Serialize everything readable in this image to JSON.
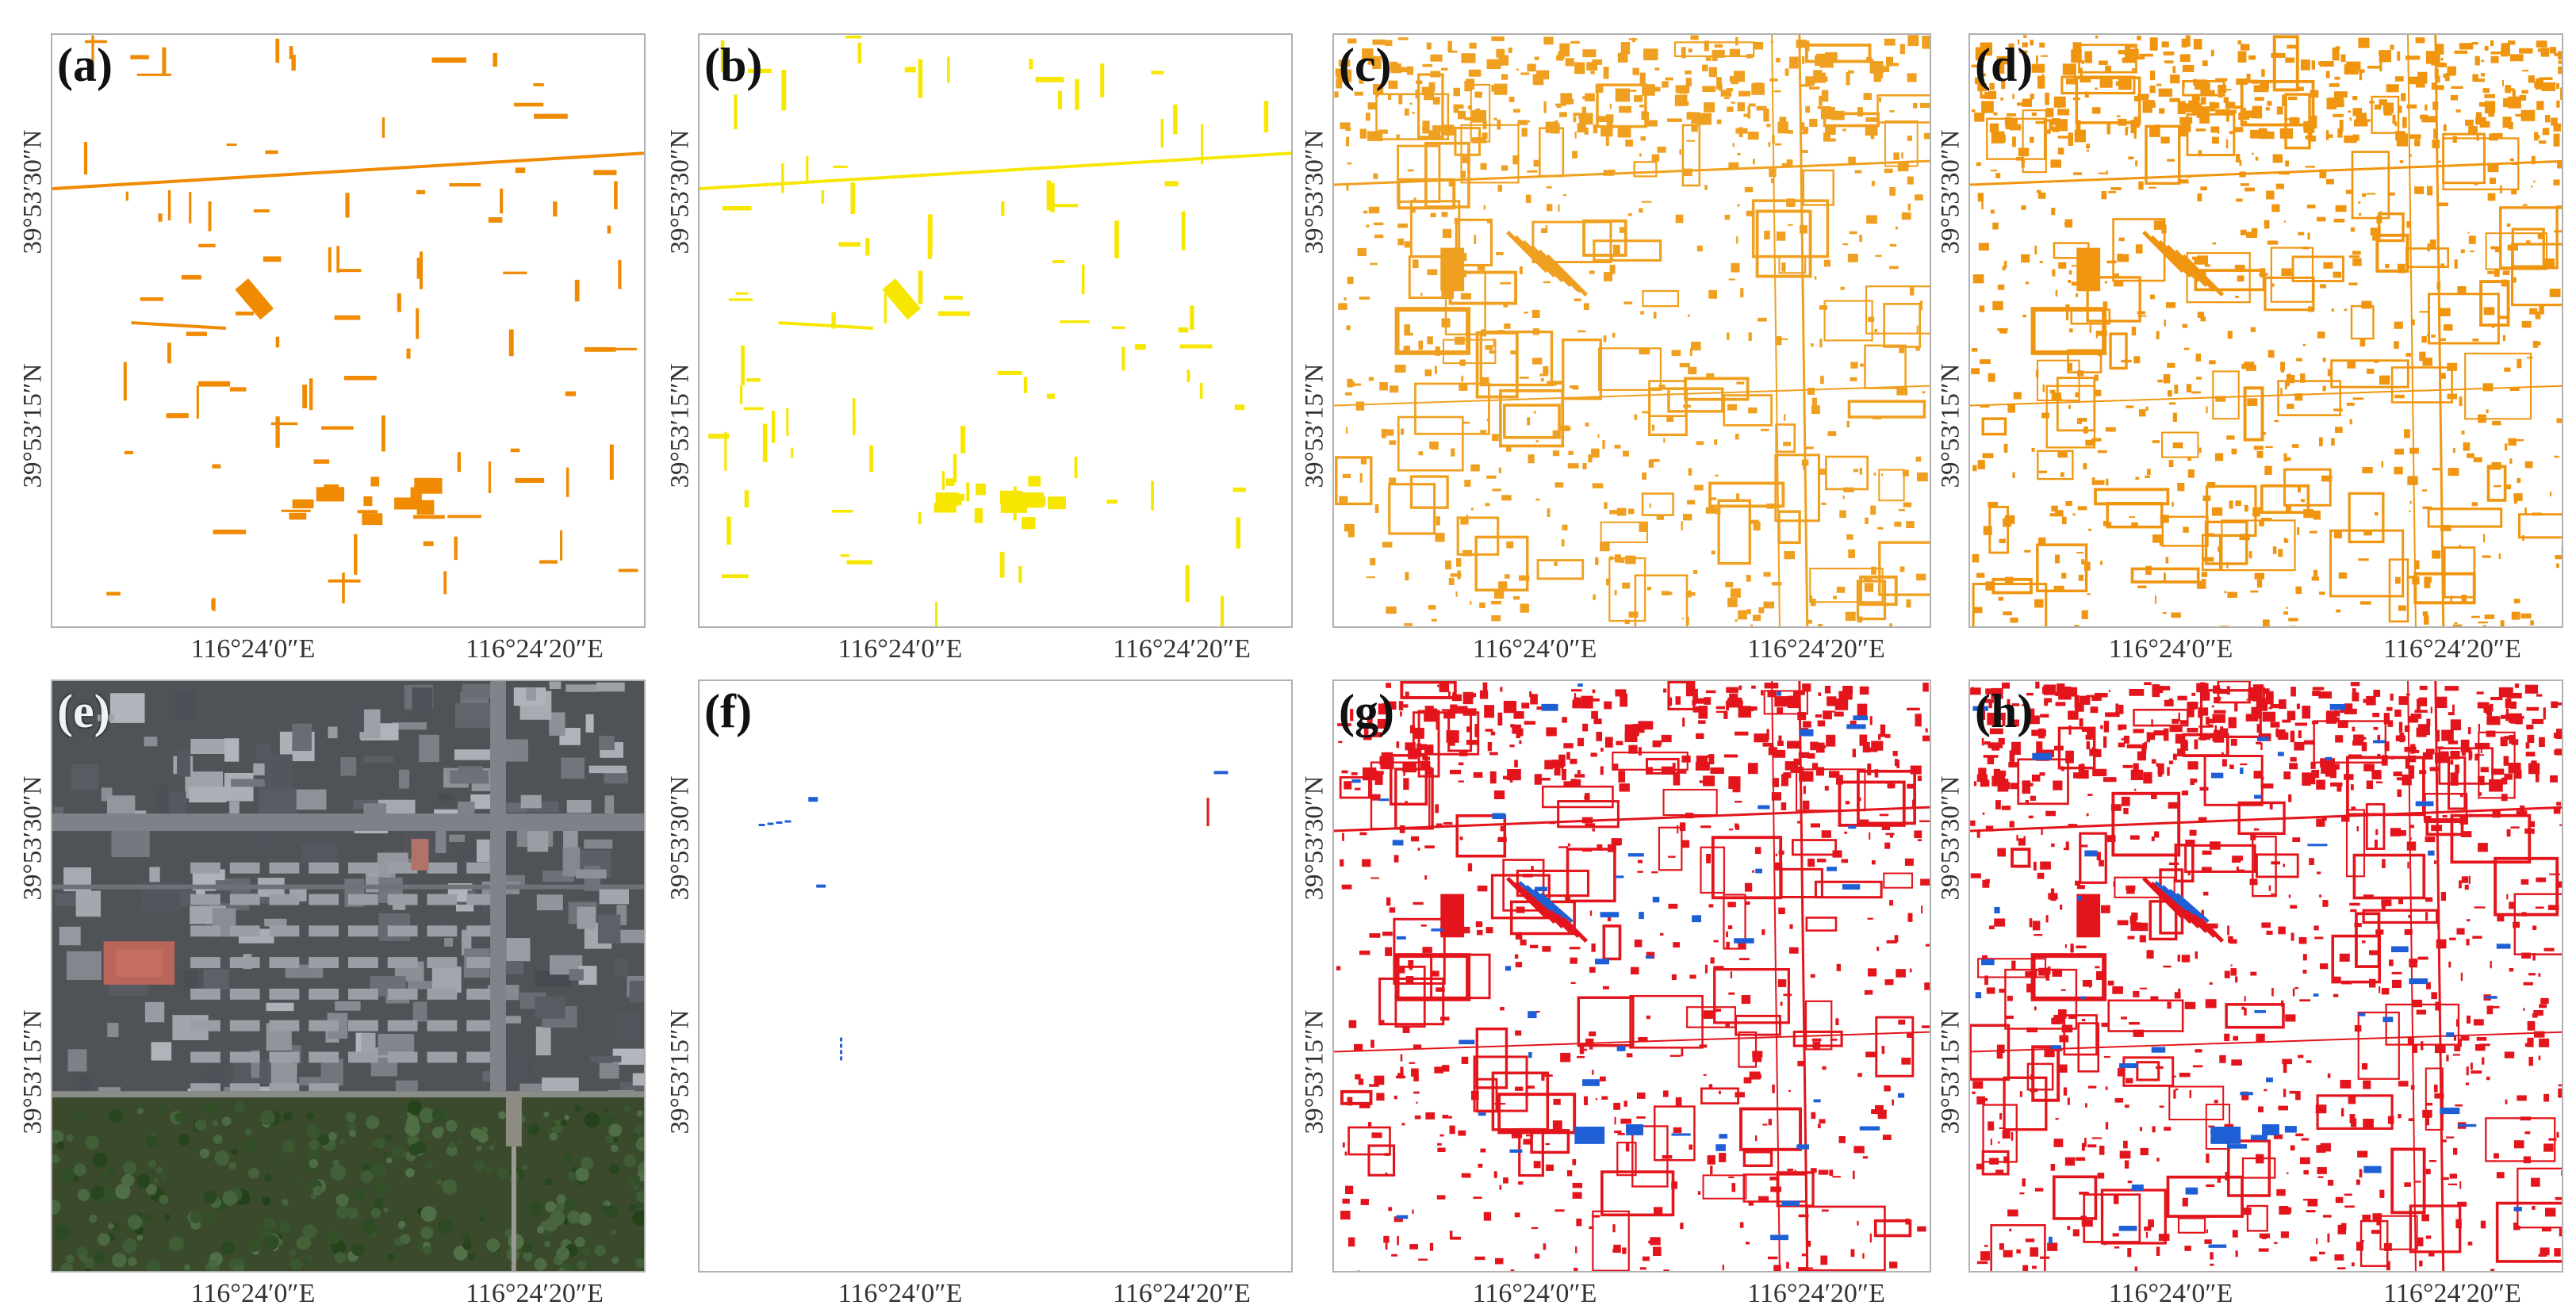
{
  "figure": {
    "panels": [
      {
        "id": "a",
        "label": "(a)",
        "content": "orange change pixels, sparse segments",
        "color": "#f08a00"
      },
      {
        "id": "b",
        "label": "(b)",
        "content": "yellow change pixels, sparse segments",
        "color": "#f7e600"
      },
      {
        "id": "c",
        "label": "(c)",
        "content": "orange change pixels, dense outlines",
        "color": "#f0a020"
      },
      {
        "id": "d",
        "label": "(d)",
        "content": "orange change pixels, dense outlines",
        "color": "#f0950f"
      },
      {
        "id": "e",
        "label": "(e)",
        "content": "satellite image of urban area"
      },
      {
        "id": "f",
        "label": "(f)",
        "content": "few blue and red change segments",
        "colors": [
          "#1f5fd6",
          "#e11a1a"
        ]
      },
      {
        "id": "g",
        "label": "(g)",
        "content": "red and blue change pixels, dense",
        "colors": [
          "#e3141b",
          "#1f5fd6"
        ]
      },
      {
        "id": "h",
        "label": "(h)",
        "content": "red and blue change pixels, dense",
        "colors": [
          "#e3141b",
          "#1f5fd6"
        ]
      }
    ],
    "axis": {
      "lat_top": "39°53′30″N",
      "lat_bottom": "39°53′15″N",
      "lon_left": "116°24′0″E",
      "lon_right": "116°24′20″E"
    }
  }
}
